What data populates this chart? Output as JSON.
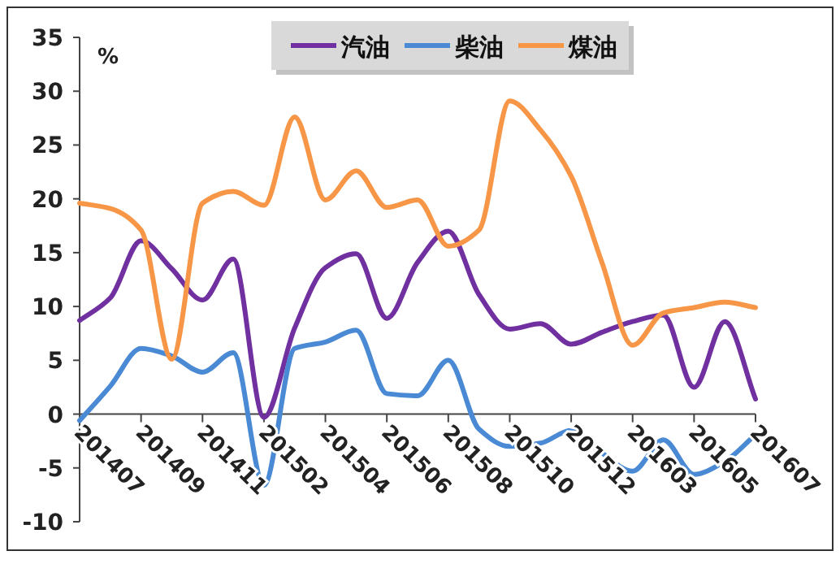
{
  "chart_data": {
    "type": "line",
    "ylabel": "%",
    "categories": [
      "201407",
      null,
      "201409",
      null,
      "201411",
      null,
      "201502",
      null,
      "201504",
      null,
      "201506",
      null,
      "201508",
      null,
      "201510",
      null,
      "201512",
      null,
      "201603",
      null,
      "201605",
      null,
      "201607"
    ],
    "series": [
      {
        "name": "汽油",
        "color": "#7030a0",
        "values": [
          8.7,
          10.8,
          16.1,
          13.5,
          10.6,
          14.4,
          -0.3,
          8.0,
          13.6,
          14.9,
          8.9,
          14.1,
          17.0,
          11.1,
          7.9,
          8.4,
          6.5,
          7.6,
          8.6,
          9.2,
          2.5,
          8.6,
          1.4
        ]
      },
      {
        "name": "柴油",
        "color": "#4a8ad4",
        "values": [
          -0.6,
          2.6,
          6.1,
          5.4,
          3.9,
          5.7,
          -6.6,
          6.1,
          6.7,
          7.8,
          1.9,
          1.7,
          5.0,
          -1.4,
          -3.0,
          -2.7,
          -1.5,
          -3.6,
          -5.3,
          -2.4,
          -5.6,
          -4.4,
          -1.9
        ]
      },
      {
        "name": "煤油",
        "color": "#f79646",
        "values": [
          19.6,
          19.1,
          17.1,
          5.1,
          19.6,
          20.7,
          19.4,
          27.6,
          19.9,
          22.6,
          19.2,
          19.9,
          15.6,
          17.1,
          29.1,
          26.4,
          22.1,
          14.1,
          6.4,
          9.4,
          9.9,
          10.4,
          9.9
        ]
      }
    ],
    "ylim": [
      -10,
      35
    ],
    "yticks": [
      -10,
      -5,
      0,
      5,
      10,
      15,
      20,
      25,
      30,
      35
    ],
    "grid": false,
    "legend": "top",
    "marker": "none",
    "line_style": "solid"
  }
}
